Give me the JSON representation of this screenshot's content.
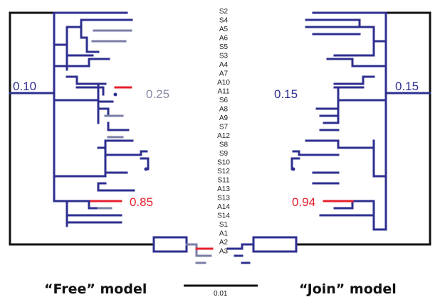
{
  "colors": {
    "branch": "#2e2f8f",
    "outer": "#111111",
    "grey": "#7b7ea6",
    "highlight": "#e5202e",
    "node_value_blue": "#2e2f8f",
    "node_value_grey": "#8a8ca8",
    "node_value_red": "#e5202e"
  },
  "taxa": [
    "S2",
    "S4",
    "A5",
    "A6",
    "S5",
    "S3",
    "A4",
    "A7",
    "A10",
    "A11",
    "S6",
    "A8",
    "A9",
    "S7",
    "A12",
    "S8",
    "S9",
    "S10",
    "S12",
    "S11",
    "A13",
    "S13",
    "A14",
    "S14",
    "S1",
    "A1",
    "A2",
    "A3"
  ],
  "left_values": {
    "root": "0.10",
    "a10": "0.25",
    "a13": "0.85"
  },
  "right_values": {
    "a11": "0.15",
    "root": "0.15",
    "a13": "0.94"
  },
  "titles": {
    "left": "“Free” model",
    "right": "“Join” model"
  },
  "scale": {
    "label": "0.01"
  }
}
